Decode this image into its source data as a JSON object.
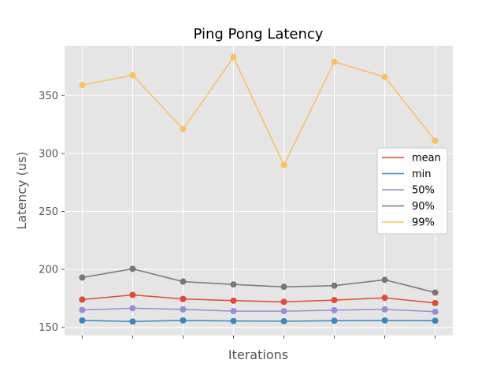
{
  "chart_data": {
    "type": "line",
    "title": "Ping Pong Latency",
    "xlabel": "Iterations",
    "ylabel": "Latency (us)",
    "x": [
      0,
      1,
      2,
      3,
      4,
      5,
      6,
      7
    ],
    "ylim": [
      143,
      393
    ],
    "yticks": [
      150,
      200,
      250,
      300,
      350
    ],
    "grid": true,
    "legend_position": "center-right",
    "series": [
      {
        "name": "mean",
        "color": "#E24A33",
        "values": [
          174,
          178,
          174.5,
          173,
          172,
          173.5,
          175.5,
          171
        ]
      },
      {
        "name": "min",
        "color": "#348ABD",
        "values": [
          156,
          155,
          156,
          155.5,
          155.3,
          155.7,
          156,
          155.7
        ]
      },
      {
        "name": "50%",
        "color": "#988ED5",
        "values": [
          165,
          166.5,
          165.5,
          164,
          164,
          164.8,
          165.5,
          163.5
        ]
      },
      {
        "name": "90%",
        "color": "#777777",
        "values": [
          193,
          200.5,
          189.5,
          187,
          185,
          186,
          191,
          180
        ]
      },
      {
        "name": "99%",
        "color": "#FBC15E",
        "values": [
          359,
          367.5,
          321,
          383,
          290,
          379,
          366,
          311
        ]
      }
    ]
  }
}
